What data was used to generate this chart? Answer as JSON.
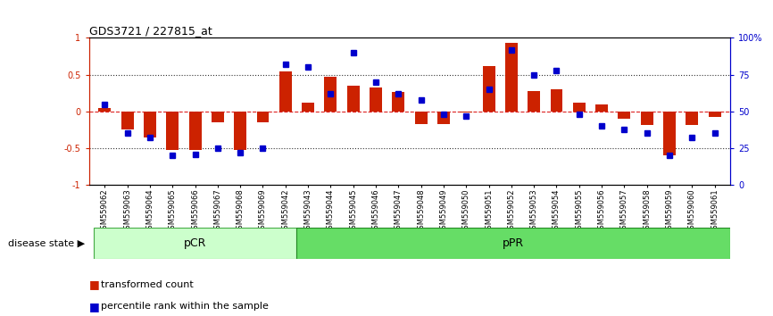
{
  "title": "GDS3721 / 227815_at",
  "samples": [
    "GSM559062",
    "GSM559063",
    "GSM559064",
    "GSM559065",
    "GSM559066",
    "GSM559067",
    "GSM559068",
    "GSM559069",
    "GSM559042",
    "GSM559043",
    "GSM559044",
    "GSM559045",
    "GSM559046",
    "GSM559047",
    "GSM559048",
    "GSM559049",
    "GSM559050",
    "GSM559051",
    "GSM559052",
    "GSM559053",
    "GSM559054",
    "GSM559055",
    "GSM559056",
    "GSM559057",
    "GSM559058",
    "GSM559059",
    "GSM559060",
    "GSM559061"
  ],
  "transformed_count": [
    0.05,
    -0.25,
    -0.35,
    -0.53,
    -0.52,
    -0.15,
    -0.53,
    -0.15,
    0.55,
    0.12,
    0.47,
    0.35,
    0.33,
    0.27,
    -0.17,
    -0.17,
    -0.02,
    0.62,
    0.93,
    0.28,
    0.3,
    0.12,
    0.1,
    -0.1,
    -0.18,
    -0.6,
    -0.18,
    -0.07
  ],
  "percentile_rank": [
    55,
    35,
    32,
    20,
    21,
    25,
    22,
    25,
    82,
    80,
    62,
    90,
    70,
    62,
    58,
    48,
    47,
    65,
    92,
    75,
    78,
    48,
    40,
    38,
    35,
    20,
    32,
    35
  ],
  "pCR_count": 9,
  "bar_color": "#cc2200",
  "dot_color": "#0000cc",
  "pCR_facecolor": "#ccffcc",
  "pPR_facecolor": "#66dd66",
  "pCR_edgecolor": "#44aa44",
  "pPR_edgecolor": "#228822",
  "zero_line_color": "#dd2222",
  "grid_line_color": "#333333",
  "left_spine_color": "#cc2200",
  "right_spine_color": "#0000cc",
  "title_fontsize": 9,
  "tick_label_fontsize": 7,
  "sample_label_fontsize": 6,
  "legend_fontsize": 8,
  "disease_fontsize": 8,
  "group_label_fontsize": 9
}
